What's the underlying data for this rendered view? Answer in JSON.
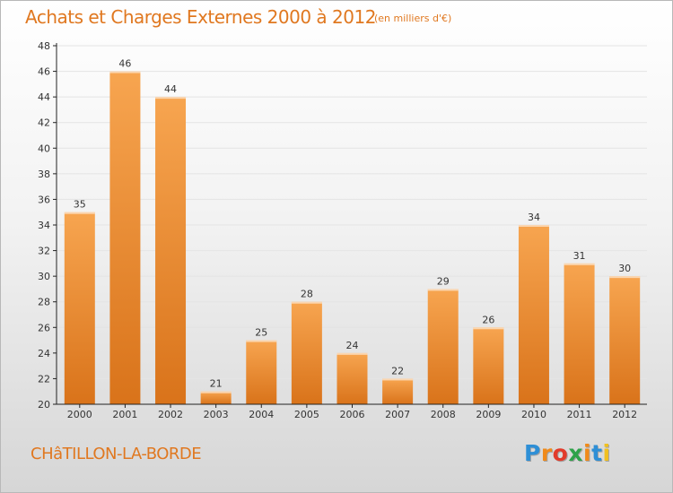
{
  "header": {
    "title": "Achats et Charges Externes 2000 à 2012",
    "unit_note": "(en milliers d'€)"
  },
  "footer": {
    "commune": "CHâTILLON-LA-BORDE",
    "logo_letters": [
      "P",
      "r",
      "o",
      "x",
      "i",
      "t",
      "i"
    ],
    "logo_colors": [
      "#2e8fd6",
      "#f08a1a",
      "#e23b2b",
      "#2ea24a",
      "#f08a1a",
      "#2e8fd6",
      "#f0c020"
    ]
  },
  "colors": {
    "accent": "#e07820",
    "bar_top": "#f7a550",
    "bar_bottom": "#d9731a",
    "grid": "#e4e4e4",
    "axis": "#222222"
  },
  "chart_data": {
    "type": "bar",
    "categories": [
      "2000",
      "2001",
      "2002",
      "2003",
      "2004",
      "2005",
      "2006",
      "2007",
      "2008",
      "2009",
      "2010",
      "2011",
      "2012"
    ],
    "values": [
      35,
      46,
      44,
      21,
      25,
      28,
      24,
      22,
      29,
      26,
      34,
      31,
      30
    ],
    "ylim": [
      20,
      48
    ],
    "yticks": [
      20,
      22,
      24,
      26,
      28,
      30,
      32,
      34,
      36,
      38,
      40,
      42,
      44,
      46,
      48
    ],
    "grid": true,
    "legend": "none",
    "data_labels": true,
    "xlabel": "",
    "ylabel": ""
  }
}
